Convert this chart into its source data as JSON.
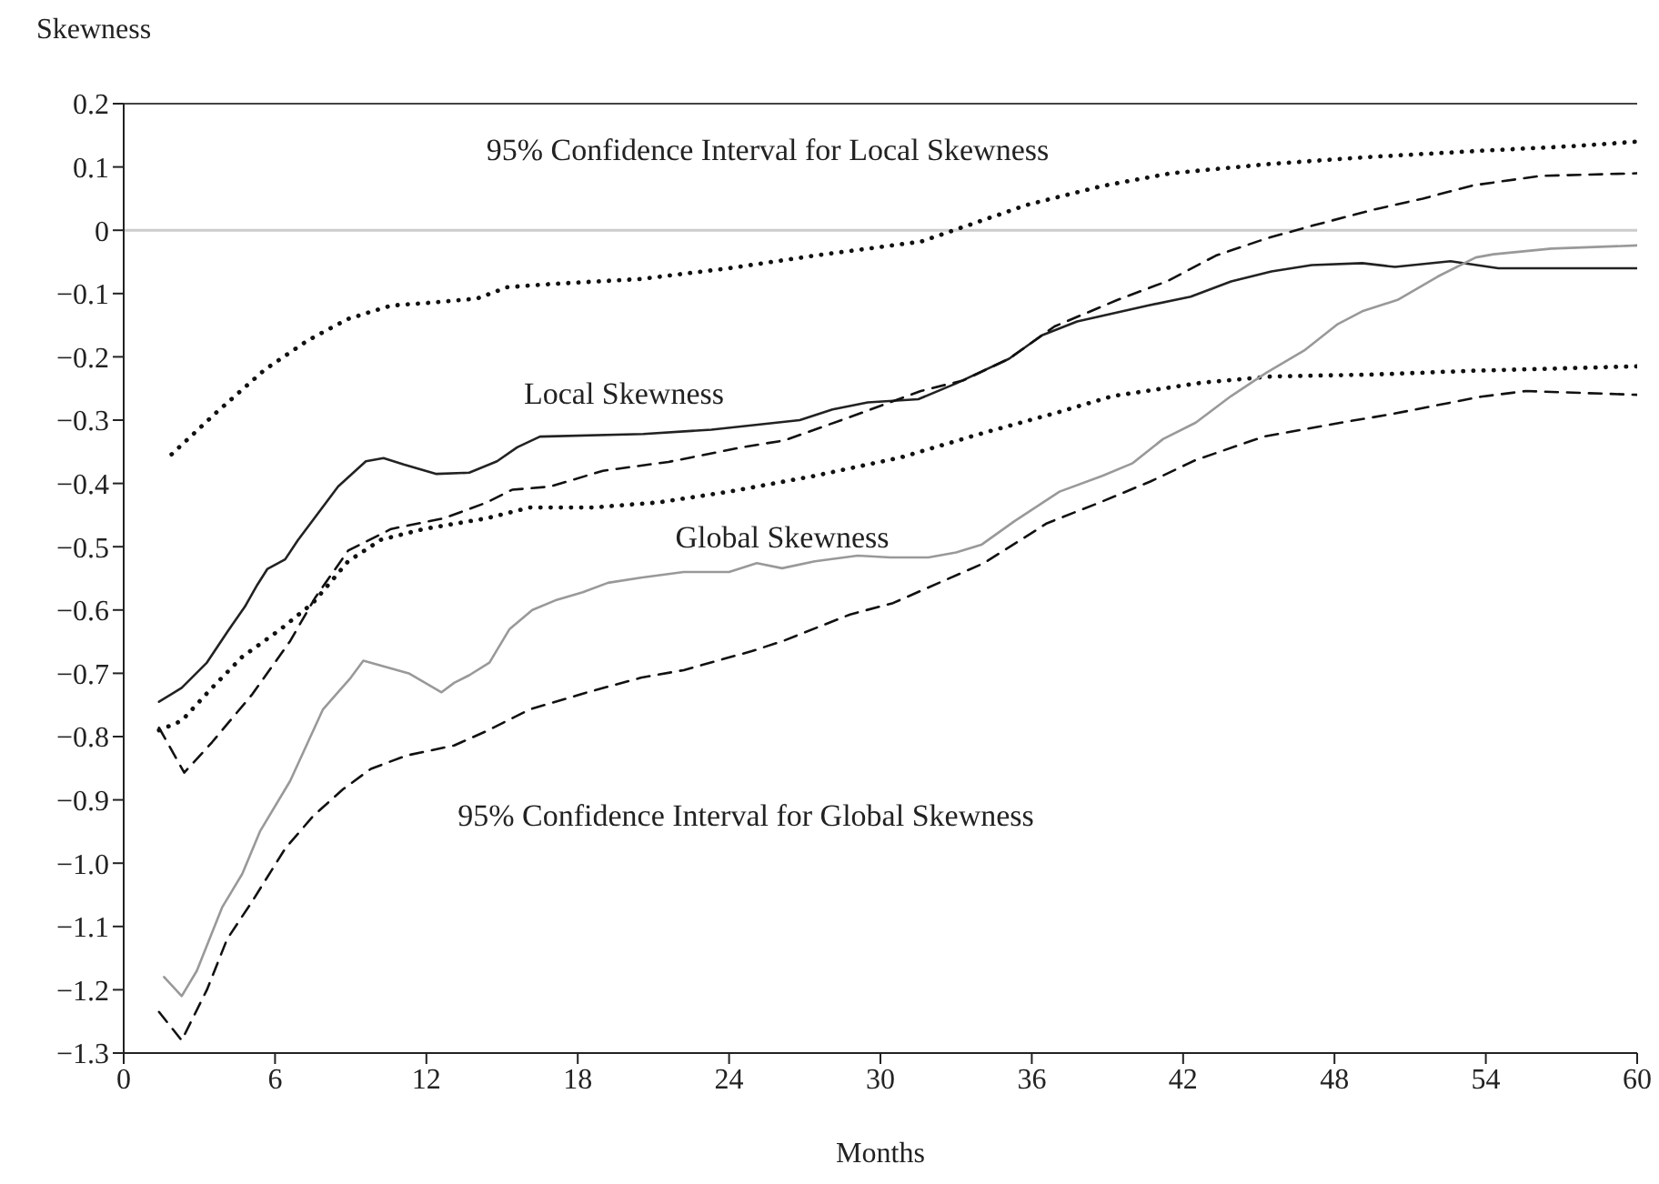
{
  "chart_data": {
    "type": "line",
    "ylabel": "Skewness",
    "xlabel": "Months",
    "xlim": [
      0,
      60
    ],
    "xticks": [
      0,
      6,
      12,
      18,
      24,
      30,
      36,
      42,
      48,
      54,
      60
    ],
    "ylim": [
      -1.3,
      0.2
    ],
    "yticks": [
      0.2,
      0.1,
      0,
      {
        "value": -0.1,
        "label": "−0.1"
      },
      {
        "value": -0.2,
        "label": "−0.2"
      },
      {
        "value": -0.3,
        "label": "−0.3"
      },
      {
        "value": -0.4,
        "label": "−0.4"
      },
      {
        "value": -0.5,
        "label": "−0.5"
      },
      {
        "value": -0.6,
        "label": "−0.6"
      },
      {
        "value": -0.7,
        "label": "−0.7"
      },
      {
        "value": -0.8,
        "label": "−0.8"
      },
      {
        "value": -0.9,
        "label": "−0.9"
      },
      {
        "value": -1.0,
        "label": "−1.0"
      },
      {
        "value": -1.1,
        "label": "−1.1"
      },
      {
        "value": -1.2,
        "label": "−1.2"
      },
      {
        "value": -1.3,
        "label": "−1.3"
      }
    ],
    "grid": false,
    "ref_lines": [
      {
        "axis": "y",
        "value": 0,
        "color": "#cccccc"
      }
    ],
    "series": [
      {
        "color": "#222222",
        "line_style": "solid",
        "x": [
          1.4,
          2.3,
          3.3,
          4.1,
          4.8,
          5.3,
          5.7,
          6.4,
          6.9,
          8.5,
          9.6,
          10.3,
          11.1,
          12.4,
          13.7,
          14.8,
          15.6,
          16.5,
          20.6,
          23.3,
          26.8,
          28.1,
          29.5,
          31.5,
          33.0,
          35.1,
          36.4,
          37.8,
          40.6,
          42.3,
          43.9,
          45.5,
          47.1,
          49.1,
          50.4,
          52.6,
          54.5,
          56.9,
          60
        ],
        "values": [
          -0.745,
          -0.723,
          -0.683,
          -0.635,
          -0.595,
          -0.56,
          -0.535,
          -0.52,
          -0.49,
          -0.405,
          -0.365,
          -0.36,
          -0.37,
          -0.385,
          -0.383,
          -0.365,
          -0.343,
          -0.326,
          -0.322,
          -0.315,
          -0.3,
          -0.283,
          -0.272,
          -0.267,
          -0.242,
          -0.203,
          -0.166,
          -0.144,
          -0.119,
          -0.105,
          -0.081,
          -0.065,
          -0.055,
          -0.052,
          -0.058,
          -0.049,
          -0.06,
          -0.06,
          -0.06
        ]
      },
      {
        "color": "#111111",
        "line_style": "dotted",
        "x": [
          1.9,
          3.7,
          5.6,
          7.3,
          8.9,
          10.6,
          12.3,
          14,
          15.2,
          16.9,
          20.5,
          24,
          27.4,
          31.6,
          33.2,
          35.8,
          38.8,
          41.5,
          45.5,
          49.5,
          53.5,
          57.5,
          60
        ],
        "values": [
          -0.354,
          -0.287,
          -0.22,
          -0.174,
          -0.14,
          -0.119,
          -0.114,
          -0.108,
          -0.09,
          -0.085,
          -0.077,
          -0.06,
          -0.04,
          -0.018,
          0.004,
          0.04,
          0.07,
          0.09,
          0.105,
          0.116,
          0.125,
          0.133,
          0.14
        ]
      },
      {
        "color": "#111111",
        "line_style": "dotted",
        "x": [
          1.4,
          2.3,
          3.5,
          4.7,
          6.2,
          7.5,
          8.9,
          10.2,
          11.9,
          14.4,
          16.1,
          18.6,
          21.2,
          24,
          27.4,
          30.8,
          34.1,
          37.1,
          39.2,
          42.7,
          45.5,
          49.5,
          53.5,
          60
        ],
        "values": [
          -0.79,
          -0.775,
          -0.723,
          -0.674,
          -0.631,
          -0.589,
          -0.523,
          -0.489,
          -0.472,
          -0.455,
          -0.438,
          -0.438,
          -0.43,
          -0.413,
          -0.388,
          -0.359,
          -0.32,
          -0.287,
          -0.262,
          -0.241,
          -0.231,
          -0.228,
          -0.222,
          -0.215
        ]
      },
      {
        "color": "#999999",
        "line_style": "solid",
        "x": [
          1.6,
          2.3,
          2.9,
          3.9,
          4.7,
          5.4,
          6.6,
          7.9,
          9.0,
          9.5,
          11.3,
          12.6,
          13.1,
          13.7,
          14.5,
          15.3,
          16.2,
          17.1,
          18.2,
          19.2,
          20.5,
          22.2,
          24,
          25.1,
          26.1,
          27.4,
          29.1,
          30.4,
          31.9,
          33,
          34,
          35.3,
          37.1,
          38.8,
          40,
          41.2,
          42.5,
          43.9,
          45.3,
          46.8,
          48.1,
          49.1,
          50.5,
          52.1,
          53.6,
          54.3,
          56.6,
          60
        ],
        "values": [
          -1.18,
          -1.21,
          -1.17,
          -1.07,
          -1.017,
          -0.95,
          -0.87,
          -0.757,
          -0.707,
          -0.68,
          -0.7,
          -0.73,
          -0.715,
          -0.703,
          -0.683,
          -0.63,
          -0.6,
          -0.585,
          -0.572,
          -0.557,
          -0.549,
          -0.54,
          -0.54,
          -0.526,
          -0.534,
          -0.523,
          -0.514,
          -0.517,
          -0.517,
          -0.509,
          -0.497,
          -0.46,
          -0.413,
          -0.388,
          -0.368,
          -0.33,
          -0.304,
          -0.262,
          -0.225,
          -0.19,
          -0.149,
          -0.128,
          -0.11,
          -0.073,
          -0.043,
          -0.038,
          -0.029,
          -0.024
        ]
      },
      {
        "color": "#111111",
        "line_style": "dashed",
        "x": [
          1.4,
          2.4,
          3.5,
          5.1,
          6.6,
          7.6,
          8.9,
          10.6,
          12.7,
          14.4,
          15.4,
          16.9,
          19,
          21.6,
          24.5,
          26.2,
          28.8,
          31.6,
          33.3,
          35.1,
          36.9,
          39.4,
          41.4,
          43.3,
          45.3,
          47.1,
          49.6,
          51.5,
          53.5,
          56.2,
          60
        ],
        "values": [
          -0.786,
          -0.857,
          -0.809,
          -0.733,
          -0.649,
          -0.58,
          -0.506,
          -0.472,
          -0.455,
          -0.43,
          -0.41,
          -0.405,
          -0.38,
          -0.366,
          -0.343,
          -0.332,
          -0.295,
          -0.254,
          -0.237,
          -0.203,
          -0.152,
          -0.11,
          -0.08,
          -0.04,
          -0.013,
          0.007,
          0.033,
          0.05,
          0.071,
          0.086,
          0.09
        ]
      },
      {
        "color": "#111111",
        "line_style": "dashed",
        "x": [
          1.4,
          2.3,
          3.3,
          4.1,
          5.1,
          6.4,
          7.5,
          8.7,
          9.8,
          11.2,
          13.1,
          14.4,
          16.1,
          18.3,
          20.5,
          22.2,
          24.9,
          26.2,
          28.8,
          30.5,
          34.1,
          36.6,
          38.7,
          40.7,
          42.5,
          45.2,
          48.4,
          50.2,
          52,
          53.8,
          55.6,
          60
        ],
        "values": [
          -1.235,
          -1.28,
          -1.2,
          -1.12,
          -1.06,
          -0.977,
          -0.926,
          -0.883,
          -0.851,
          -0.83,
          -0.814,
          -0.791,
          -0.757,
          -0.731,
          -0.707,
          -0.695,
          -0.665,
          -0.648,
          -0.607,
          -0.589,
          -0.526,
          -0.463,
          -0.43,
          -0.397,
          -0.363,
          -0.326,
          -0.303,
          -0.291,
          -0.277,
          -0.263,
          -0.254,
          -0.26
        ]
      }
    ],
    "annotations": [
      "95% Confidence Interval for Local Skewness",
      "Local Skewness",
      "Global Skewness",
      "95% Confidence Interval for Global Skewness"
    ]
  }
}
